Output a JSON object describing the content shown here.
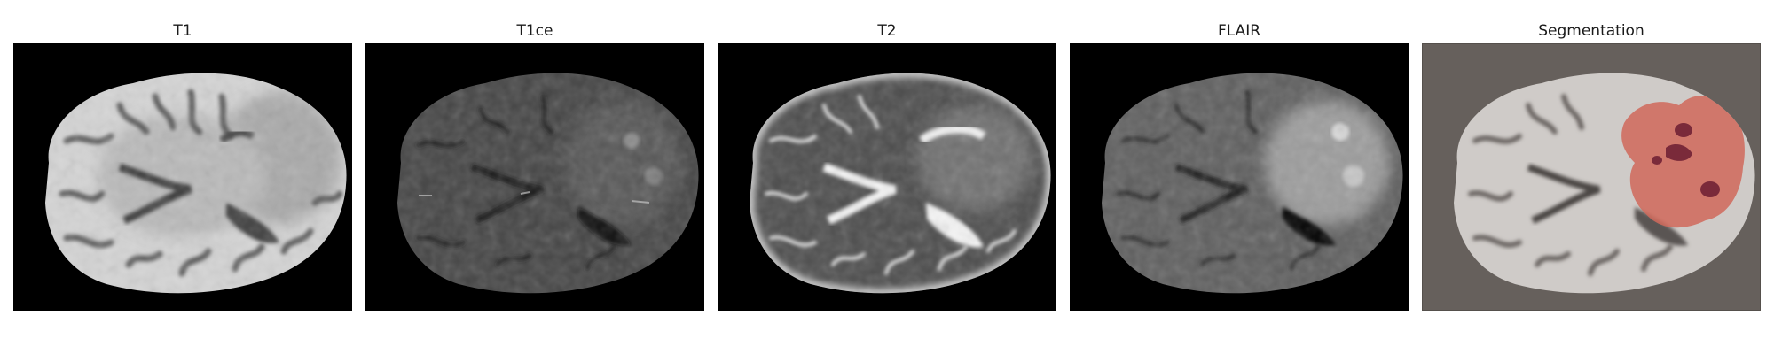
{
  "panels": [
    {
      "title": "T1",
      "icon": "brain-mri-t1-image",
      "colors": {
        "background": "#000000",
        "tissue": "#d9d9d9",
        "folds": "#555555"
      }
    },
    {
      "title": "T1ce",
      "icon": "brain-mri-t1ce-image",
      "colors": {
        "background": "#000000",
        "tissue": "#4a4a4a",
        "folds": "#222222"
      }
    },
    {
      "title": "T2",
      "icon": "brain-mri-t2-image",
      "colors": {
        "background": "#000000",
        "tissue": "#4f4f4f",
        "csf": "#f0f0f0"
      }
    },
    {
      "title": "FLAIR",
      "icon": "brain-mri-flair-image",
      "colors": {
        "background": "#000000",
        "tissue": "#6a6a6a",
        "lesion": "#b8b8b8"
      }
    },
    {
      "title": "Segmentation",
      "icon": "brain-segmentation-overlay-image",
      "colors": {
        "background": "#66605c",
        "tissue": "#d6d2cf",
        "tumor": "#d0685a",
        "core": "#7a2a3a"
      }
    }
  ]
}
